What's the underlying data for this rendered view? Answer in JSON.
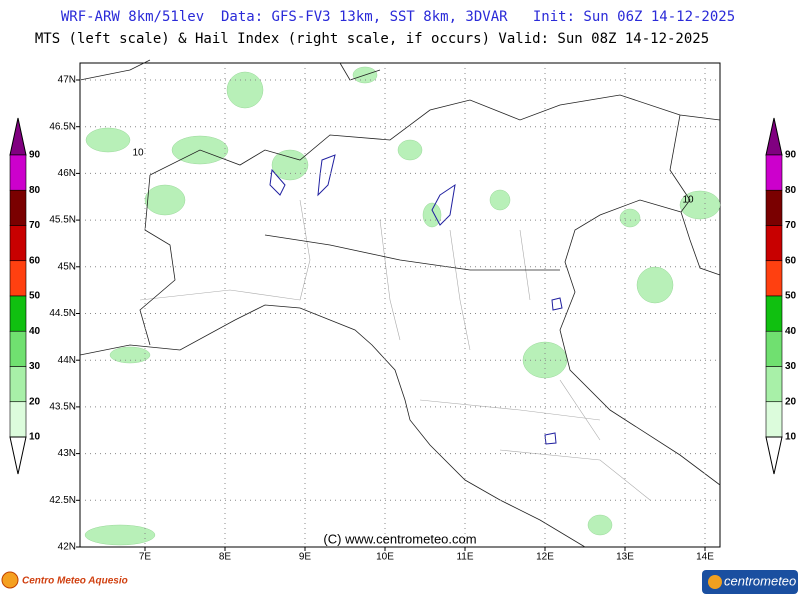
{
  "header": {
    "line1": "WRF-ARW 8km/51lev  Data: GFS-FV3 13km, SST 8km, 3DVAR   Init: Sun 06Z 14-12-2025",
    "line2": "MTS (left scale) & Hail Index (right scale, if occurs) Valid: Sun 08Z 14-12-2025"
  },
  "map": {
    "lat_labels": [
      "47N",
      "46.5N",
      "46N",
      "45.5N",
      "45N",
      "44.5N",
      "44N",
      "43.5N",
      "43N",
      "42.5N",
      "42N"
    ],
    "lon_labels": [
      "7E",
      "8E",
      "9E",
      "10E",
      "11E",
      "12E",
      "13E",
      "14E"
    ],
    "contour_labels": [
      "10",
      "10"
    ],
    "copyright": "(C) www.centrometeo.com"
  },
  "colorbar": {
    "left_labels": [
      "90",
      "80",
      "70",
      "60",
      "50",
      "40",
      "30",
      "20",
      "10"
    ],
    "right_labels": [
      "90",
      "80",
      "70",
      "60",
      "50",
      "40",
      "30",
      "20",
      "10"
    ]
  },
  "footer": {
    "left_logo": "Centro Meteo Aquesio",
    "right_logo": "centrometeo"
  }
}
